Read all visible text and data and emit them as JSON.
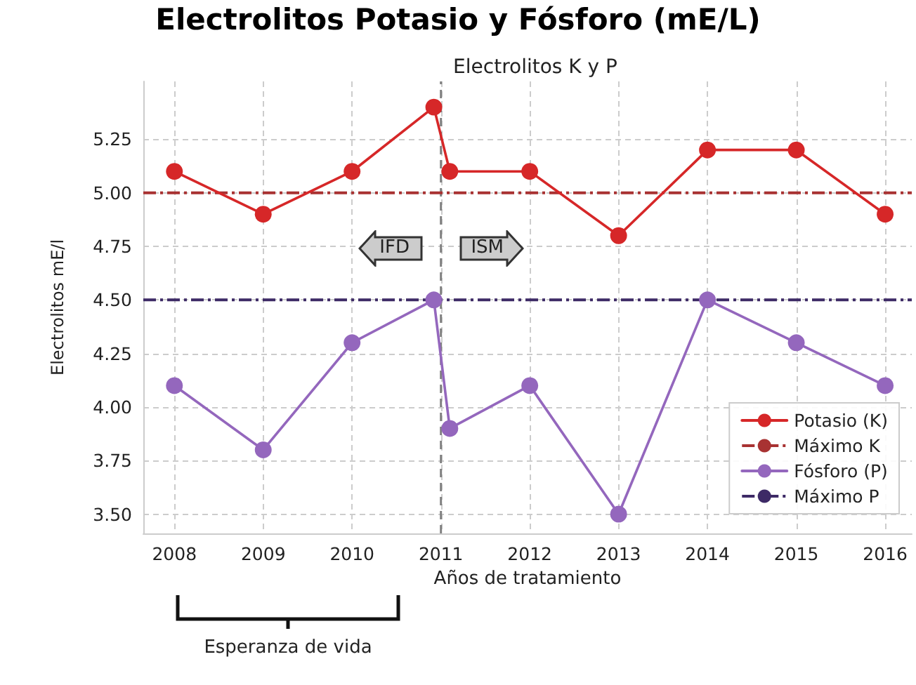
{
  "chart_data": {
    "type": "line",
    "title": "Electrolitos Potasio y Fósforo (mE/L)",
    "subtitle": "Electrolitos K y P",
    "xlabel": "Años de tratamiento",
    "ylabel": "Electrolitos mE/l",
    "series": [
      {
        "name": "Potasio (K)",
        "color": "#d62728",
        "x": [
          2008,
          2009,
          2010,
          2010.92,
          2011.1,
          2012,
          2013,
          2014,
          2015,
          2016
        ],
        "values": [
          5.1,
          4.9,
          5.1,
          5.4,
          5.1,
          5.1,
          4.8,
          5.2,
          5.2,
          4.9
        ]
      },
      {
        "name": "Fósforo (P)",
        "color": "#9467bd",
        "x": [
          2008,
          2009,
          2010,
          2010.92,
          2011.1,
          2012,
          2013,
          2014,
          2015,
          2016
        ],
        "values": [
          4.1,
          3.8,
          4.3,
          4.5,
          3.9,
          4.1,
          3.5,
          4.5,
          4.3,
          4.1
        ]
      }
    ],
    "xlim": [
      2007.65,
      2016.3
    ],
    "xticks": [
      2008,
      2009,
      2010,
      2011,
      2012,
      2013,
      2014,
      2015,
      2016
    ],
    "ylim": [
      3.41,
      5.52
    ],
    "yticks": [
      {
        "value": 3.5,
        "label": "3.50"
      },
      {
        "value": 3.75,
        "label": "3.75"
      },
      {
        "value": 4.0,
        "label": "4.00"
      },
      {
        "value": 4.25,
        "label": "4.25"
      },
      {
        "value": 4.5,
        "label": "4.50"
      },
      {
        "value": 4.75,
        "label": "4.75"
      },
      {
        "value": 5.0,
        "label": "5.00"
      },
      {
        "value": 5.25,
        "label": "5.25"
      }
    ],
    "ref_lines": [
      {
        "axis": "y",
        "value": 5.0,
        "label": "Máximo K",
        "color": "#a83232",
        "line_style": "dashdot"
      },
      {
        "axis": "y",
        "value": 4.5,
        "label": "Máximo P",
        "color": "#3d2a66",
        "line_style": "dashdot"
      },
      {
        "axis": "x",
        "value": 2011,
        "label": null,
        "color": "#808080",
        "line_style": "dashed"
      }
    ],
    "annotations": [
      "IFD",
      "ISM",
      "Esperanza de vida"
    ],
    "grid": true,
    "legend": "bottom right",
    "marker": "circle",
    "line_style": "solid"
  }
}
